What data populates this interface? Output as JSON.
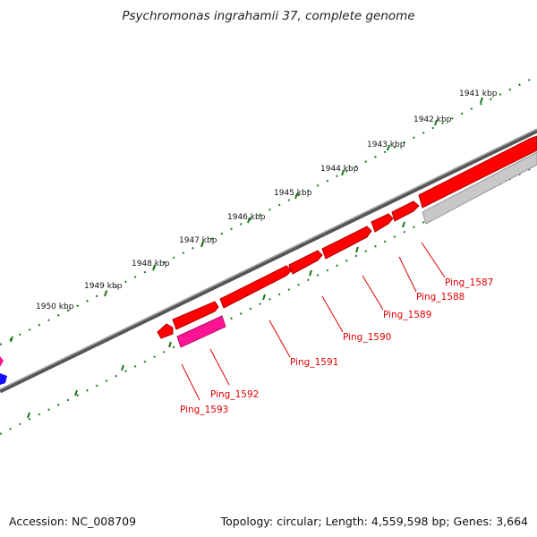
{
  "title": "Psychromonas ingrahamii 37, complete genome",
  "accession": "Accession: NC_008709",
  "summary": "Topology: circular; Length: 4,559,598 bp; Genes: 3,664",
  "kbp_labels": [
    "1941 kbp",
    "1942 kbp",
    "1943 kbp",
    "1944 kbp",
    "1945 kbp",
    "1946 kbp",
    "1947 kbp",
    "1948 kbp",
    "1949 kbp",
    "1950 kbp"
  ],
  "genes": [
    "Ping_1587",
    "Ping_1588",
    "Ping_1589",
    "Ping_1590",
    "Ping_1591",
    "Ping_1592",
    "Ping_1593"
  ],
  "colors": {
    "forward_gene": "#ff0000",
    "reverse_gene": "#ff1493",
    "backbone": "#777777",
    "ticks": "#1a7a1a",
    "pseudo_gene": "#c0c0c0",
    "label": "#e00000"
  }
}
